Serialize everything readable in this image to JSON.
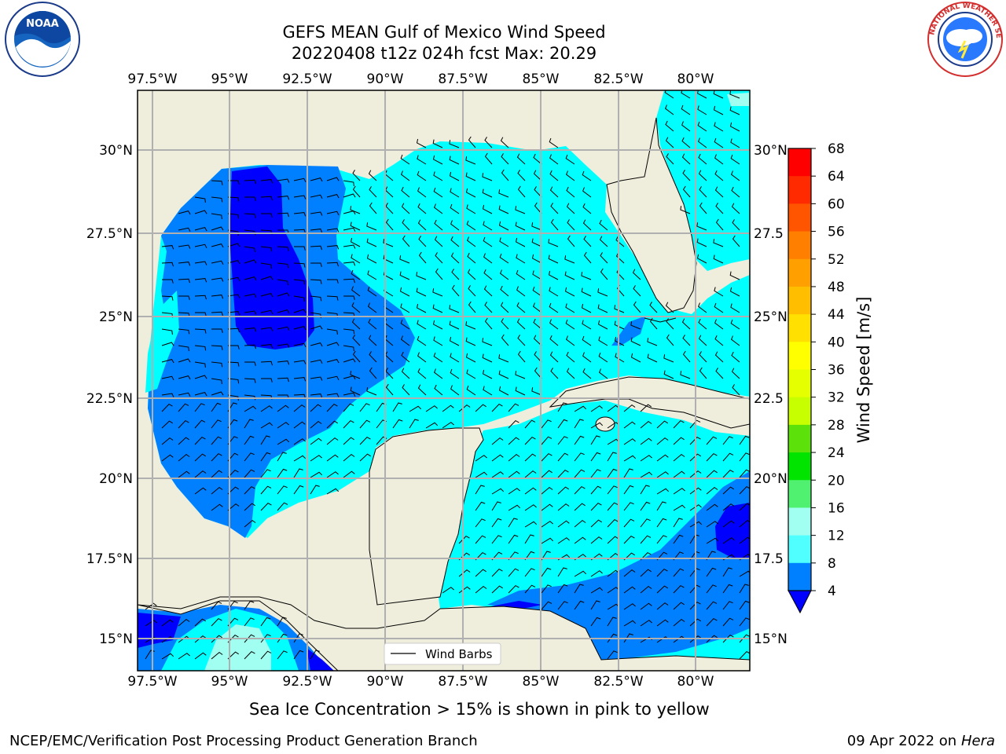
{
  "title_line1": "GEFS MEAN Gulf of Mexico Wind Speed",
  "title_line2": "20220408 t12z 024h fcst   Max: 20.29",
  "lon_labels": [
    "97.5°W",
    "95°W",
    "92.5°W",
    "90°W",
    "87.5°W",
    "85°W",
    "82.5°W",
    "80°W"
  ],
  "lat_labels": [
    "30°N",
    "27.5°N",
    "25°N",
    "22.5°N",
    "20°N",
    "17.5°N",
    "15°N"
  ],
  "lat_labels_right": [
    "30°N",
    "27.5",
    "25°N",
    "22.5",
    "20°N",
    "17.5",
    "15°N"
  ],
  "legend_label": "Wind Barbs",
  "colorbar": {
    "label": "Wind Speed [m/s]",
    "ticks": [
      "68",
      "64",
      "60",
      "56",
      "52",
      "48",
      "44",
      "40",
      "36",
      "32",
      "28",
      "24",
      "20",
      "16",
      "12",
      "8",
      "4"
    ],
    "colors": [
      "#ff0000",
      "#ff2a00",
      "#ff5500",
      "#ff7f00",
      "#ff9f00",
      "#ffbf00",
      "#ffe000",
      "#ffff00",
      "#e6ff00",
      "#c8ff00",
      "#98ff00",
      "#5de10a",
      "#00e400",
      "#00c800",
      "#50f070",
      "#a0fff0",
      "#50ffff",
      "#00ffff",
      "#0080ff",
      "#0000ff"
    ]
  },
  "note": "Sea Ice Concentration > 15% is shown in pink to yellow",
  "credit_left": "NCEP/EMC/Verification Post Processing Product Generation Branch",
  "credit_right_date": "09 Apr 2022 on",
  "credit_right_machine": "Hera",
  "logos": {
    "left": {
      "name": "noaa-logo",
      "text": "NOAA"
    },
    "right": {
      "name": "nws-logo",
      "text": "NATIONAL WEATHER SERVICE"
    }
  },
  "colors": {
    "land": "#efeddc",
    "cyan": "#00ffff",
    "mid_blue": "#0080ff",
    "dark_blue": "#0000ff",
    "pale_cyan": "#a0fff0",
    "grid": "#b0b0b0"
  }
}
